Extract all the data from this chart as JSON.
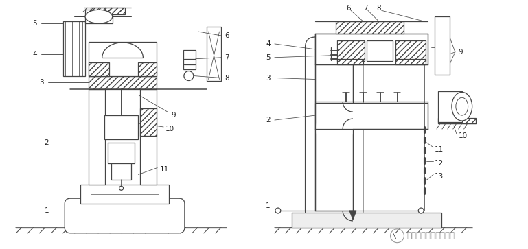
{
  "background_color": "#ffffff",
  "fig_width": 7.69,
  "fig_height": 3.63,
  "dpi": 100,
  "watermark_text": "五金冲压模具设计教学",
  "watermark_color": "#999999",
  "line_color": "#444444",
  "line_width": 0.9,
  "number_fontsize": 7.5,
  "number_color": "#222222"
}
